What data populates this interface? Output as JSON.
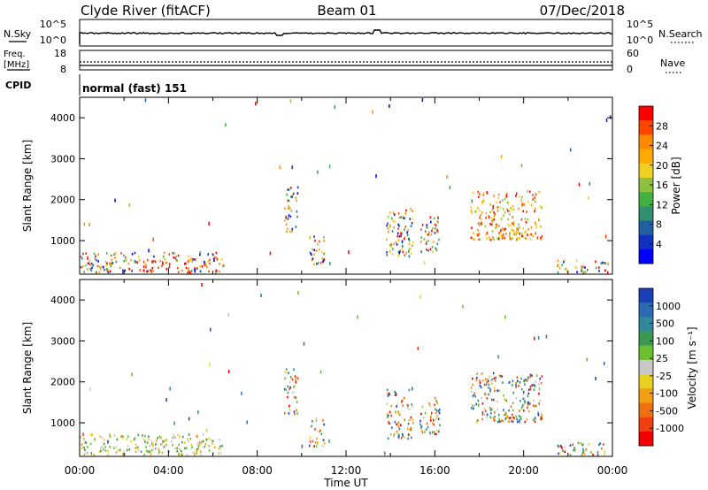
{
  "header": {
    "station": "Clyde River (fitACF)",
    "beam": "Beam 01",
    "date": "07/Dec/2018"
  },
  "nsky_panel": {
    "left_label": "N.Sky",
    "ticks": [
      "10^5",
      "10^0"
    ],
    "right_label": "N.Search",
    "right_ticks": [
      "10^5",
      "10^0"
    ]
  },
  "freq_panel": {
    "left_label_1": "Freq.",
    "left_label_2": "[MHz]",
    "ticks": [
      "18",
      "8"
    ],
    "right_label": "Nave",
    "right_ticks": [
      "60",
      "0"
    ]
  },
  "cpid": {
    "label": "CPID",
    "value": "normal (fast) 151"
  },
  "chart_data": [
    {
      "type": "heatmap",
      "parameter": "power",
      "ylabel": "Slant Range [km]",
      "ylim": [
        180,
        4500
      ],
      "yticks": [
        1000,
        2000,
        3000,
        4000
      ],
      "colorbar": {
        "label": "Power [dB]",
        "ticks": [
          "28",
          "24",
          "20",
          "16",
          "12",
          "8",
          "4"
        ],
        "colors": [
          "#ff0000",
          "#ff4400",
          "#ff8800",
          "#ffaa00",
          "#f0d020",
          "#90c040",
          "#40b040",
          "#309070",
          "#2060a0",
          "#1030c0",
          "#0000ff"
        ]
      },
      "echo_regions": [
        {
          "t": [
            0.0,
            6.5
          ],
          "r": [
            200,
            700
          ]
        },
        {
          "t": [
            9.2,
            9.8
          ],
          "r": [
            1200,
            2300
          ]
        },
        {
          "t": [
            10.3,
            11.0
          ],
          "r": [
            400,
            1100
          ]
        },
        {
          "t": [
            13.8,
            15.0
          ],
          "r": [
            600,
            1800
          ]
        },
        {
          "t": [
            15.3,
            16.2
          ],
          "r": [
            700,
            1600
          ]
        },
        {
          "t": [
            17.6,
            20.8
          ],
          "r": [
            1000,
            2200
          ]
        },
        {
          "t": [
            21.5,
            23.8
          ],
          "r": [
            200,
            500
          ]
        }
      ]
    },
    {
      "type": "heatmap",
      "parameter": "velocity",
      "ylabel": "Slant Range [km]",
      "ylim": [
        180,
        4500
      ],
      "yticks": [
        1000,
        2000,
        3000,
        4000
      ],
      "xlabel": "Time UT",
      "xticks": [
        "00:00",
        "04:00",
        "08:00",
        "12:00",
        "16:00",
        "20:00",
        "00:00"
      ],
      "colorbar": {
        "label": "Velocity [m s⁻¹]",
        "ticks": [
          "1000",
          "500",
          "100",
          "25",
          "-25",
          "-100",
          "-500",
          "-1000"
        ],
        "colors": [
          "#1a3fb8",
          "#2a6ab0",
          "#30889a",
          "#3c9a50",
          "#6cc030",
          "#c8c8c8",
          "#e8d020",
          "#f0a010",
          "#f07010",
          "#f04010",
          "#f00000"
        ]
      },
      "echo_regions": [
        {
          "t": [
            0.0,
            6.5
          ],
          "r": [
            200,
            700
          ]
        },
        {
          "t": [
            9.2,
            9.8
          ],
          "r": [
            1200,
            2300
          ]
        },
        {
          "t": [
            10.3,
            11.0
          ],
          "r": [
            400,
            1100
          ]
        },
        {
          "t": [
            13.8,
            15.0
          ],
          "r": [
            600,
            1800
          ]
        },
        {
          "t": [
            15.3,
            16.2
          ],
          "r": [
            700,
            1600
          ]
        },
        {
          "t": [
            17.6,
            20.8
          ],
          "r": [
            1000,
            2200
          ]
        },
        {
          "t": [
            21.5,
            23.8
          ],
          "r": [
            200,
            500
          ]
        }
      ]
    }
  ]
}
